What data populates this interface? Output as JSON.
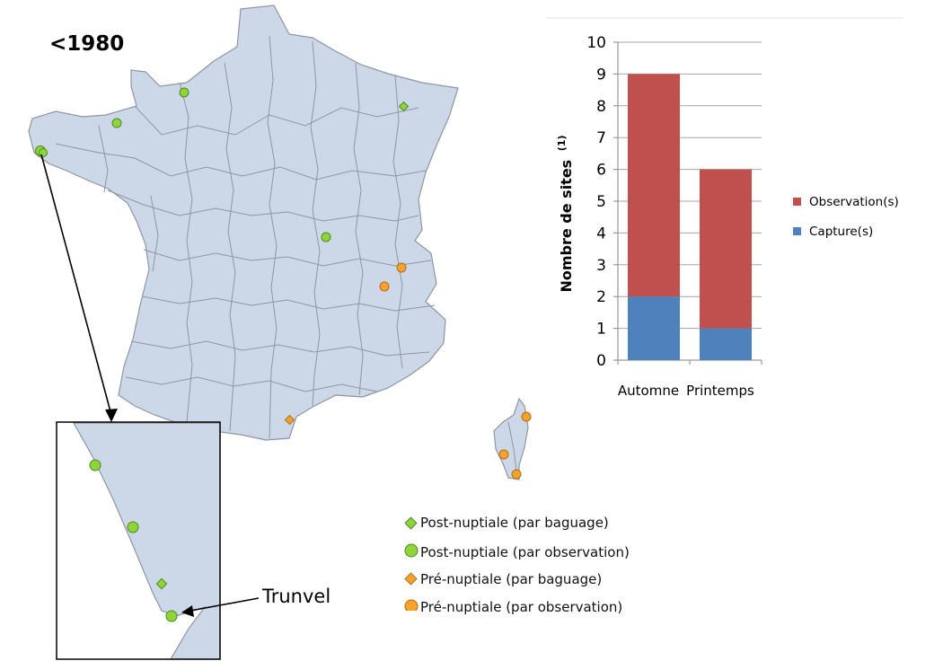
{
  "map": {
    "period_label": "<1980",
    "inset_label": "Trunvel",
    "colors": {
      "land": "#ccd7e8",
      "border": "#8e96a3",
      "post_nuptial": "#8fd43a",
      "post_nuptial_stroke": "#4a8a1d",
      "pre_nuptial": "#f5a32c",
      "pre_nuptial_stroke": "#b46a12"
    },
    "legend": [
      {
        "marker": "diamond",
        "color": "#8fd43a",
        "label": "Post-nuptiale (par baguage)"
      },
      {
        "marker": "circle",
        "color": "#8fd43a",
        "label": "Post-nuptiale (par observation)"
      },
      {
        "marker": "diamond",
        "color": "#f5a32c",
        "label": "Pré-nuptiale (par baguage)"
      },
      {
        "marker": "circle",
        "color": "#f5a32c",
        "label": "Pré-nuptiale (par observation)"
      }
    ]
  },
  "chart_data": {
    "type": "bar",
    "stacked": true,
    "categories": [
      "Automne",
      "Printemps"
    ],
    "series": [
      {
        "name": "Capture(s)",
        "color": "#4f81bd",
        "values": [
          2,
          1
        ]
      },
      {
        "name": "Observation(s)",
        "color": "#c0504d",
        "values": [
          7,
          5
        ]
      }
    ],
    "ylabel": "Nombre de sites",
    "ylabel_superscript": "(1)",
    "ylim": [
      0,
      10
    ],
    "yticks": [
      0,
      1,
      2,
      3,
      4,
      5,
      6,
      7,
      8,
      9,
      10
    ],
    "grid": true,
    "legend_position": "right"
  }
}
